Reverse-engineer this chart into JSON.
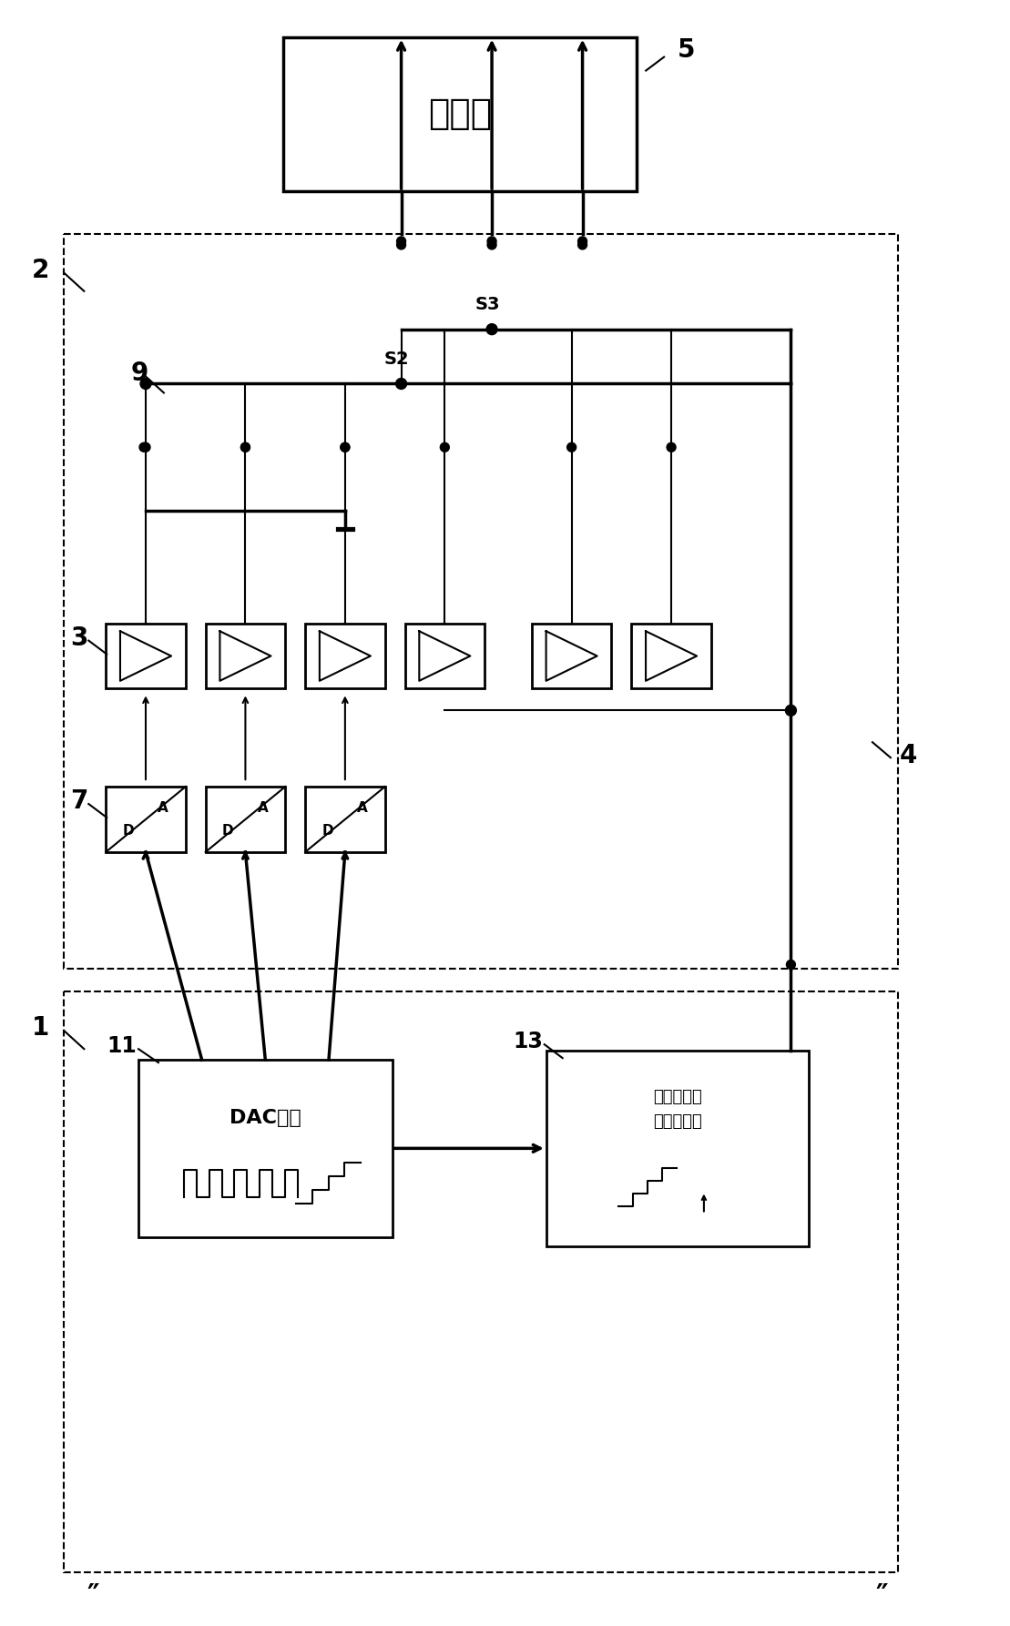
{
  "fig_width": 11.09,
  "fig_height": 17.86,
  "bg_color": "#ffffff",
  "lc": "#000000",
  "box5_label": "功率级",
  "dac_label": "DAC控制",
  "logic_label": "选通脉冲解\n码逻辑电路",
  "label5": "5",
  "label2": "2",
  "label1": "1",
  "label3": "3",
  "label4": "4",
  "label7": "7",
  "label9": "9",
  "labelS2": "S2",
  "labelS3": "S3",
  "label11": "11",
  "label13": "13",
  "note_left": "″",
  "note_right": "″"
}
